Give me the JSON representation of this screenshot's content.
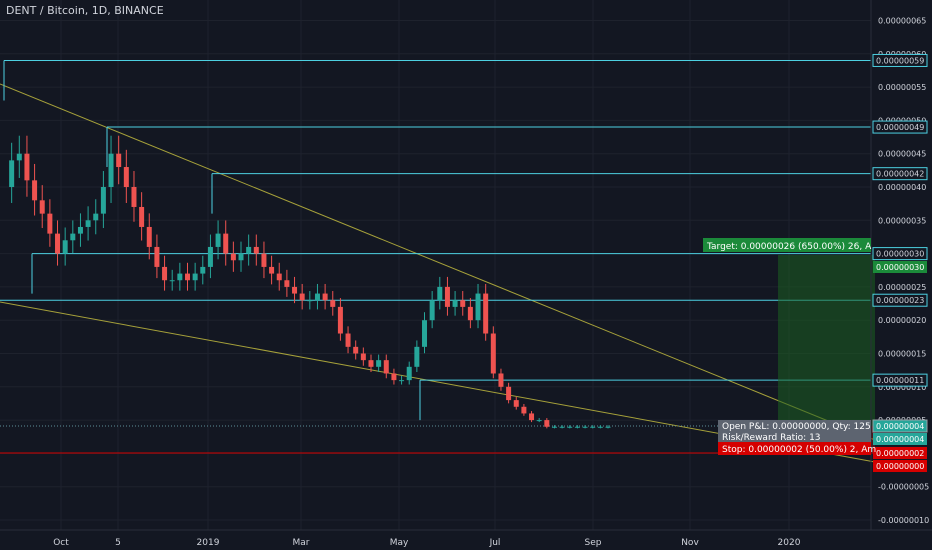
{
  "header": {
    "title": "DENT / Bitcoin, 1D, BINANCE"
  },
  "colors": {
    "background": "#131722",
    "up": "#26a69a",
    "down": "#ef5350",
    "level": "#4dd0e1",
    "trend": "#a6a13a",
    "target": "#1b5e20",
    "stop": "#d50000"
  },
  "chart_data": {
    "type": "candlestick",
    "title": "DENT / Bitcoin, 1D, BINANCE",
    "y_axis": {
      "range": [
        -1e-07,
        6e-07
      ],
      "ticks": [
        "0.00000065",
        "0.00000060",
        "0.00000055",
        "0.00000050",
        "0.00000045",
        "0.00000040",
        "0.00000035",
        "0.00000030",
        "0.00000025",
        "0.00000020",
        "0.00000015",
        "0.00000010",
        "0.00000005",
        "0.00000000",
        "-0.00000005",
        "-0.00000010"
      ]
    },
    "x_axis": {
      "ticks": [
        "Oct",
        "5",
        "2019",
        "Mar",
        "May",
        "Jul",
        "Sep",
        "Nov",
        "2020"
      ]
    },
    "horizontal_levels": [
      {
        "label": "0.00000059",
        "value": 5.9e-07
      },
      {
        "label": "0.00000049",
        "value": 4.9e-07
      },
      {
        "label": "0.00000042",
        "value": 4.2e-07
      },
      {
        "label": "0.00000030",
        "value": 3e-07
      },
      {
        "label": "0.00000023",
        "value": 2.3e-07
      },
      {
        "label": "0.00000011",
        "value": 1.1e-07
      }
    ],
    "price_tags": [
      {
        "label": "0.00000030",
        "kind": "target"
      },
      {
        "label": "0.00000004",
        "kind": "current"
      },
      {
        "label": "0.00000004",
        "kind": "current2"
      },
      {
        "label": "0.00000002",
        "kind": "stop"
      },
      {
        "label": "0.00000000",
        "kind": "stop2"
      }
    ],
    "position": {
      "target_text": "Target: 0.00000026 (650.00%) 26, A",
      "pnl_text": "Open P&L: 0.00000000, Qty: 125",
      "rr_text": "Risk/Reward Ratio: 13",
      "stop_text": "Stop: 0.00000002 (50.00%) 2, Am"
    },
    "price_series": [
      4e-07,
      4.4e-07,
      4.5e-07,
      4.1e-07,
      3.8e-07,
      3.6e-07,
      3.3e-07,
      3e-07,
      3.2e-07,
      3.3e-07,
      3.4e-07,
      3.5e-07,
      3.6e-07,
      4e-07,
      4.5e-07,
      4.3e-07,
      4e-07,
      3.7e-07,
      3.4e-07,
      3.1e-07,
      2.8e-07,
      2.6e-07,
      2.6e-07,
      2.7e-07,
      2.6e-07,
      2.7e-07,
      2.8e-07,
      3.1e-07,
      3.3e-07,
      3e-07,
      2.9e-07,
      3e-07,
      3.1e-07,
      3e-07,
      2.8e-07,
      2.7e-07,
      2.6e-07,
      2.5e-07,
      2.4e-07,
      2.3e-07,
      2.3e-07,
      2.4e-07,
      2.3e-07,
      2.2e-07,
      1.8e-07,
      1.6e-07,
      1.5e-07,
      1.4e-07,
      1.3e-07,
      1.4e-07,
      1.2e-07,
      1.1e-07,
      1.1e-07,
      1.3e-07,
      1.6e-07,
      2e-07,
      2.3e-07,
      2.5e-07,
      2.2e-07,
      2.3e-07,
      2.2e-07,
      2e-07,
      2.4e-07,
      1.8e-07,
      1.2e-07,
      1e-07,
      8e-08,
      7e-08,
      6e-08,
      5e-08,
      5e-08,
      4e-08,
      4e-08,
      4e-08,
      4e-08,
      4e-08,
      4e-08,
      4e-08,
      4e-08,
      4e-08
    ]
  }
}
